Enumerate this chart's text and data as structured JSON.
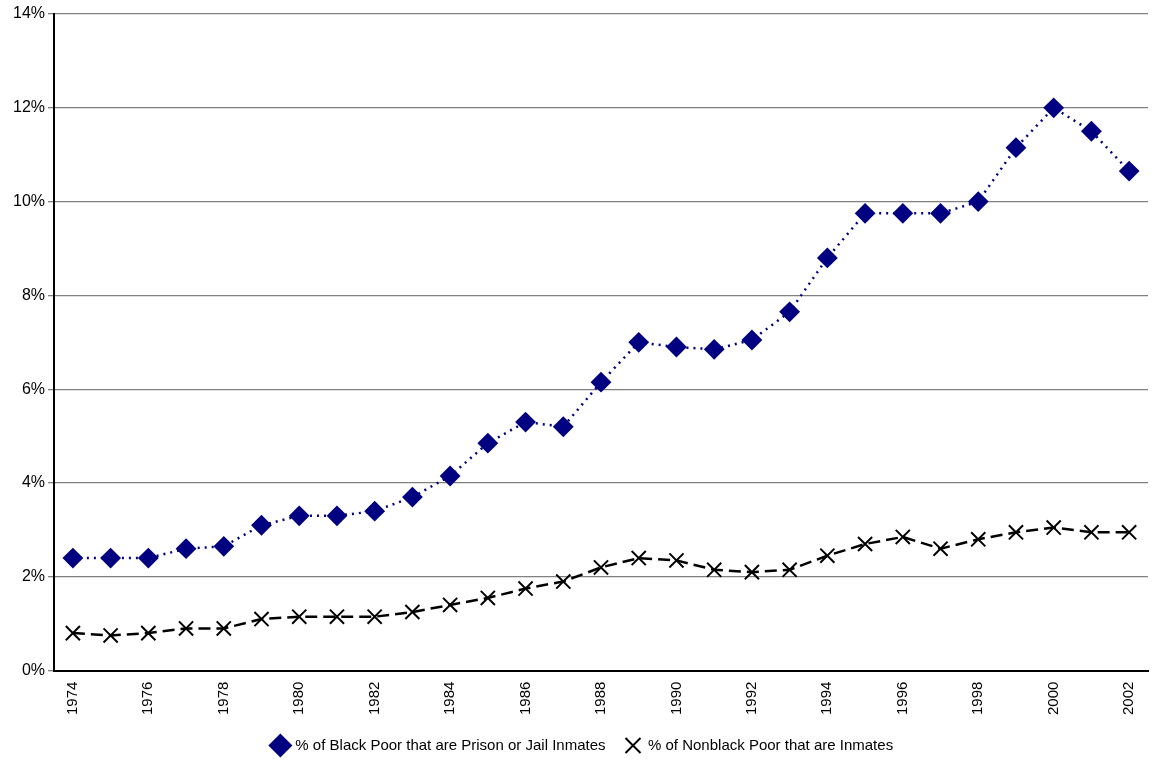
{
  "chart_data": {
    "type": "line",
    "categories": [
      "1974",
      null,
      "1976",
      null,
      "1978",
      null,
      "1980",
      null,
      "1982",
      null,
      "1984",
      null,
      "1986",
      null,
      "1988",
      null,
      "1990",
      null,
      "1992",
      null,
      "1994",
      null,
      "1996",
      null,
      "1998",
      null,
      "2000",
      null,
      "2002"
    ],
    "series": [
      {
        "name": "% of Black Poor that are Prison or Jail Inmates",
        "color": "#000080",
        "marker": "diamond",
        "line_style": "dotted",
        "values": [
          2.4,
          2.4,
          2.4,
          2.6,
          2.65,
          3.1,
          3.3,
          3.3,
          3.4,
          3.7,
          4.15,
          4.85,
          5.3,
          5.2,
          6.15,
          7.0,
          6.9,
          6.85,
          7.05,
          7.65,
          8.8,
          9.75,
          9.75,
          9.75,
          10.0,
          11.15,
          12.0,
          11.5,
          10.65
        ]
      },
      {
        "name": "% of Nonblack Poor that are Inmates",
        "color": "#000000",
        "marker": "cross",
        "line_style": "dashed",
        "values": [
          0.8,
          0.75,
          0.8,
          0.9,
          0.9,
          1.1,
          1.15,
          1.15,
          1.15,
          1.25,
          1.4,
          1.55,
          1.75,
          1.9,
          2.2,
          2.4,
          2.35,
          2.15,
          2.1,
          2.15,
          2.45,
          2.7,
          2.85,
          2.6,
          2.8,
          2.95,
          3.05,
          2.95,
          2.95
        ]
      }
    ],
    "ylim": [
      0,
      14
    ],
    "yticks": [
      {
        "value": 0,
        "label": "0%"
      },
      {
        "value": 2,
        "label": "2%"
      },
      {
        "value": 4,
        "label": "4%"
      },
      {
        "value": 6,
        "label": "6%"
      },
      {
        "value": 8,
        "label": "8%"
      },
      {
        "value": 10,
        "label": "10%"
      },
      {
        "value": 12,
        "label": "12%"
      },
      {
        "value": 14,
        "label": "14%"
      }
    ],
    "grid": "y",
    "legend": "bottom"
  }
}
